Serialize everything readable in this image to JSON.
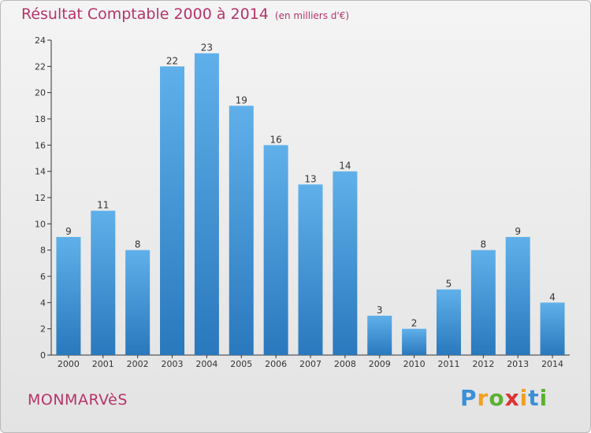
{
  "header": {
    "title": "Résultat Comptable 2000 à 2014",
    "units": "(en milliers d'€)"
  },
  "footer": {
    "city": "MONMARVèS",
    "logo_letters": [
      "P",
      "r",
      "o",
      "x",
      "i",
      "t",
      "i"
    ],
    "logo_colors": [
      "#3a8fd8",
      "#f0a020",
      "#5cb030",
      "#e03030",
      "#f0a020",
      "#3a8fd8",
      "#5cb030"
    ]
  },
  "chart_data": {
    "type": "bar",
    "title": "Résultat Comptable 2000 à 2014",
    "categories": [
      "2000",
      "2001",
      "2002",
      "2003",
      "2004",
      "2005",
      "2006",
      "2007",
      "2008",
      "2009",
      "2010",
      "2011",
      "2012",
      "2013",
      "2014"
    ],
    "values": [
      9,
      11,
      8,
      22,
      23,
      19,
      16,
      13,
      14,
      3,
      2,
      5,
      8,
      9,
      4
    ],
    "ylim": [
      0,
      24
    ],
    "yticks": [
      0,
      2,
      4,
      6,
      8,
      10,
      12,
      14,
      16,
      18,
      20,
      22,
      24
    ],
    "xlabel": "",
    "ylabel": "",
    "grid": false,
    "bar_color_top": "#5fb0ea",
    "bar_color_bottom": "#2a78bd"
  }
}
